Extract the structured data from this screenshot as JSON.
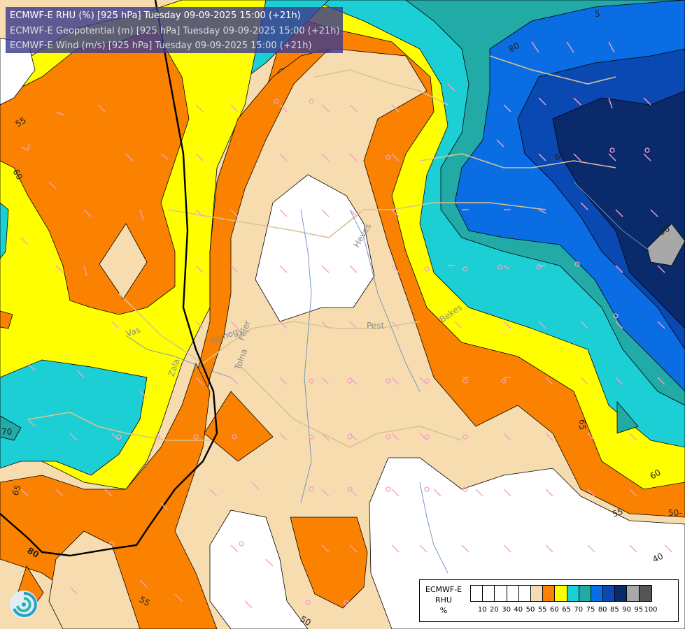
{
  "title_lines": [
    "ECMWF-E RHU (%) [925 hPa] Tuesday 09-09-2025 15:00 (+21h)",
    "ECMWF-E Geopotential (m) [925 hPa] Tuesday 09-09-2025 15:00 (+21h)",
    "ECMWF-E Wind (m/s) [925 hPa] Tuesday 09-09-2025 15:00 (+21h)"
  ],
  "legend": {
    "title_lines": [
      "ECMWF-E",
      "RHU",
      "%"
    ],
    "ticks": [
      "10",
      "20",
      "30",
      "40",
      "50",
      "55",
      "60",
      "65",
      "70",
      "75",
      "80",
      "85",
      "90",
      "95",
      "100"
    ],
    "colors": [
      "#ffffff",
      "#ffffff",
      "#ffffff",
      "#ffffff",
      "#ffffff",
      "#f7dcb0",
      "#fb8200",
      "#ffff00",
      "#1ccfd4",
      "#21aaa6",
      "#0a6de4",
      "#0a49b2",
      "#0a2a6c",
      "#a8a8a8",
      "#555555"
    ]
  },
  "contour_labels": [
    "5",
    "80",
    "85",
    "90",
    "55",
    "60",
    "70",
    "65",
    "80",
    "55",
    "50",
    "40",
    "55",
    "50",
    "65",
    "60",
    "50-"
  ],
  "region_labels": [
    "Pest",
    "Heves",
    "Bekes",
    "Vas",
    "Fejer",
    "Tolna",
    "Zala",
    "Somogy"
  ],
  "colors": {
    "title_bg": "#3c3c8c",
    "geopotential_line": "#000000",
    "wind_barb": "#f4a0c8",
    "border_line": "#d8c490",
    "river_line": "#6a8fc0"
  }
}
